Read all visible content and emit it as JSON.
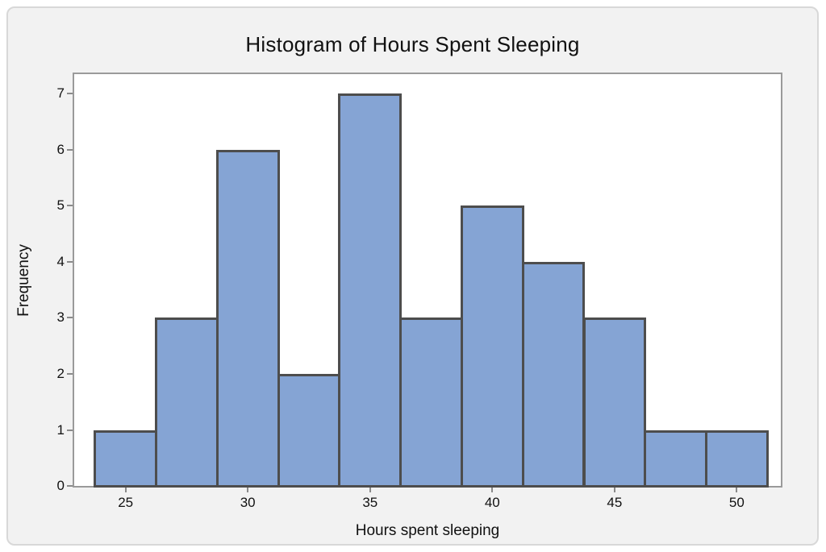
{
  "card": {
    "background": "#f2f2f2",
    "border_color": "#d8d8d8"
  },
  "chart_data": {
    "type": "bar",
    "chart_kind": "histogram",
    "title": "Histogram of Hours Spent Sleeping",
    "xlabel": "Hours spent sleeping",
    "ylabel": "Frequency",
    "bin_width": 2.5,
    "bin_edges": [
      23.75,
      26.25,
      28.75,
      31.25,
      33.75,
      36.25,
      38.75,
      41.25,
      43.75,
      46.25,
      48.75,
      51.25
    ],
    "bin_centers": [
      25,
      27.5,
      30,
      32.5,
      35,
      37.5,
      40,
      42.5,
      45,
      47.5,
      50
    ],
    "values": [
      1,
      3,
      6,
      2,
      7,
      3,
      5,
      4,
      3,
      1,
      1
    ],
    "total_count": 36,
    "x_ticks": [
      25,
      30,
      35,
      40,
      45,
      50
    ],
    "y_ticks": [
      0,
      1,
      2,
      3,
      4,
      5,
      6,
      7
    ],
    "xlim": [
      22.9,
      51.8
    ],
    "ylim": [
      0,
      7.35
    ],
    "grid": false,
    "legend": null,
    "colors": {
      "bar_fill": "#85a4d4",
      "bar_border": "#4d4d4d",
      "plot_background": "#ffffff",
      "plot_border": "#9a9a9a",
      "tick_mark": "#8a8a8a",
      "text": "#111111"
    }
  }
}
